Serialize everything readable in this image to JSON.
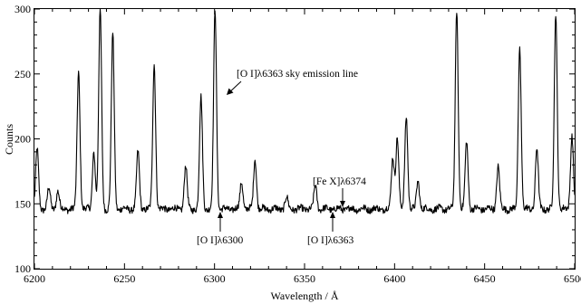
{
  "chart_data": {
    "type": "line",
    "title": "",
    "xlabel": "Wavelength / Å",
    "ylabel": "Counts",
    "xlim": [
      6200,
      6500
    ],
    "ylim": [
      100,
      300
    ],
    "xticks": [
      6200,
      6250,
      6300,
      6350,
      6400,
      6450,
      6500
    ],
    "yticks": [
      100,
      150,
      200,
      250,
      300
    ],
    "grid": false,
    "legend": "none",
    "line_color": "#000000",
    "baseline": 146,
    "peaks": [
      {
        "x": 6201.5,
        "y": 192
      },
      {
        "x": 6208,
        "y": 162
      },
      {
        "x": 6213,
        "y": 160
      },
      {
        "x": 6224.5,
        "y": 252
      },
      {
        "x": 6233,
        "y": 190
      },
      {
        "x": 6236.5,
        "y": 300
      },
      {
        "x": 6243.5,
        "y": 281
      },
      {
        "x": 6257.5,
        "y": 190
      },
      {
        "x": 6266.5,
        "y": 258
      },
      {
        "x": 6284,
        "y": 179
      },
      {
        "x": 6292.5,
        "y": 232
      },
      {
        "x": 6300.3,
        "y": 300
      },
      {
        "x": 6315,
        "y": 167
      },
      {
        "x": 6322.5,
        "y": 185
      },
      {
        "x": 6340,
        "y": 155
      },
      {
        "x": 6356,
        "y": 164
      },
      {
        "x": 6399,
        "y": 186
      },
      {
        "x": 6401.5,
        "y": 201
      },
      {
        "x": 6406.5,
        "y": 218
      },
      {
        "x": 6413,
        "y": 168
      },
      {
        "x": 6434.5,
        "y": 300
      },
      {
        "x": 6440,
        "y": 198
      },
      {
        "x": 6457.5,
        "y": 179
      },
      {
        "x": 6469.5,
        "y": 270
      },
      {
        "x": 6479,
        "y": 193
      },
      {
        "x": 6489.5,
        "y": 297
      },
      {
        "x": 6498.5,
        "y": 203
      }
    ],
    "annotations": [
      {
        "text": "[O I]λ6363 sky emission line",
        "x": 6302,
        "y": 254
      },
      {
        "text": "[Fe X]λ6374",
        "x": 6370,
        "y": 153
      },
      {
        "text": "[O I]λ6300",
        "x": 6300,
        "y": 142
      },
      {
        "text": "[O I]λ6363",
        "x": 6363,
        "y": 142
      }
    ]
  }
}
